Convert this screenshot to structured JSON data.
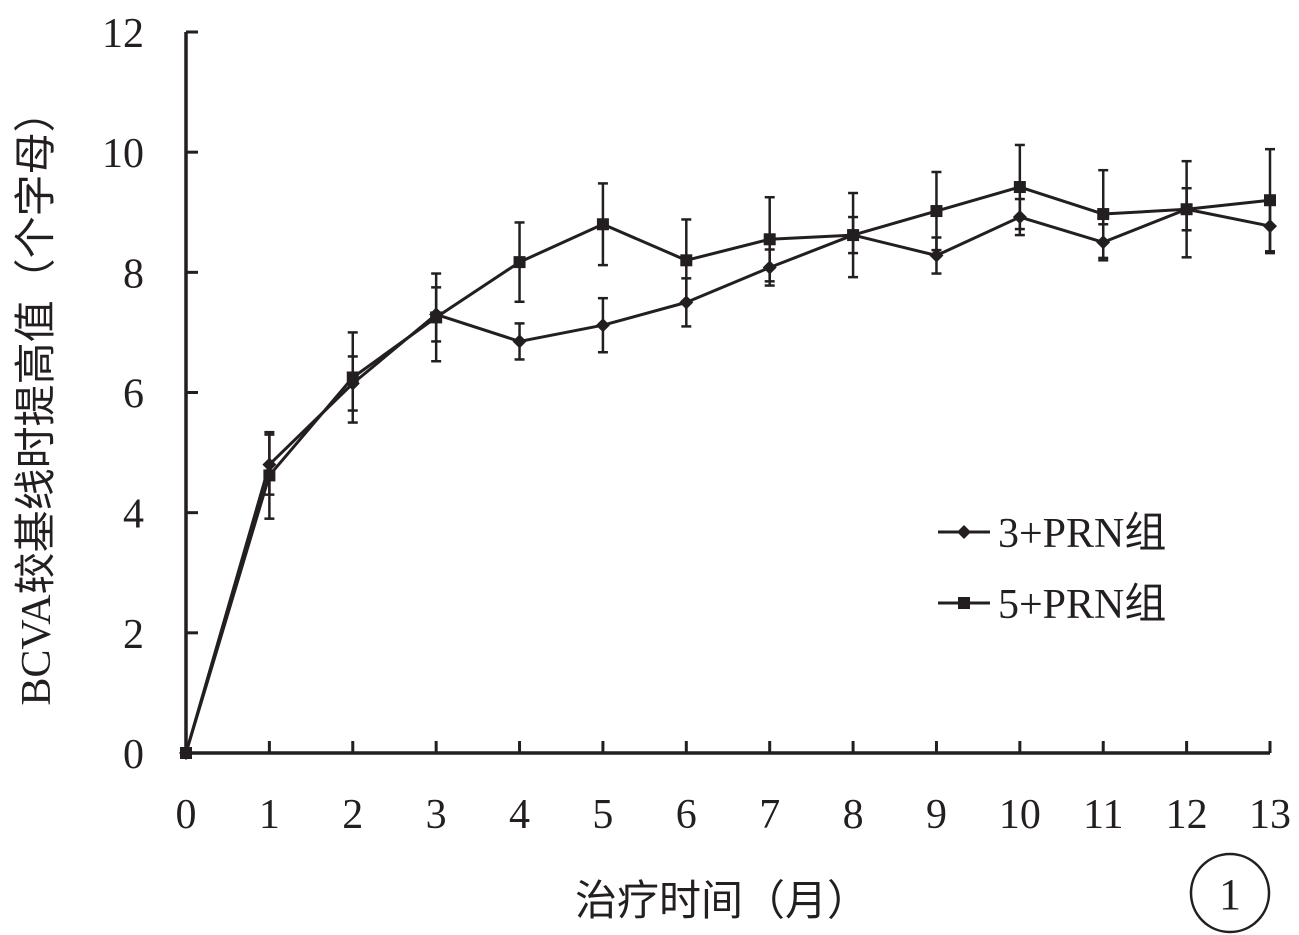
{
  "chart_data": {
    "type": "line",
    "xlabel": "治疗时间（月）",
    "ylabel": "BCVA较基线时提高值（个字母）",
    "panel_label": "1",
    "xlim": [
      0,
      13
    ],
    "ylim": [
      0,
      12
    ],
    "x_ticks": [
      "0",
      "1",
      "2",
      "3",
      "4",
      "5",
      "6",
      "7",
      "8",
      "9",
      "10",
      "11",
      "12",
      "13"
    ],
    "y_ticks": [
      "0",
      "2",
      "4",
      "6",
      "8",
      "10",
      "12"
    ],
    "x": [
      0,
      1,
      2,
      3,
      4,
      5,
      6,
      7,
      8,
      9,
      10,
      11,
      12,
      13
    ],
    "series": [
      {
        "name": "3+PRN组",
        "marker": "diamond",
        "values": [
          0,
          4.8,
          6.15,
          7.3,
          6.85,
          7.12,
          7.5,
          8.08,
          8.62,
          8.28,
          8.92,
          8.5,
          9.05,
          8.77
        ],
        "error": [
          0,
          0.5,
          0.45,
          0.45,
          0.3,
          0.45,
          0.4,
          0.3,
          0.3,
          0.3,
          0.3,
          0.3,
          0.35,
          0.45
        ]
      },
      {
        "name": "5+PRN组",
        "marker": "square",
        "values": [
          0,
          4.62,
          6.25,
          7.25,
          8.17,
          8.8,
          8.2,
          8.55,
          8.62,
          9.02,
          9.42,
          8.97,
          9.05,
          9.2
        ],
        "error": [
          0,
          0.72,
          0.75,
          0.73,
          0.66,
          0.68,
          0.68,
          0.7,
          0.7,
          0.65,
          0.7,
          0.73,
          0.8,
          0.85
        ]
      }
    ],
    "legend_position": "right",
    "grid": false,
    "line_color": "#231f20"
  }
}
